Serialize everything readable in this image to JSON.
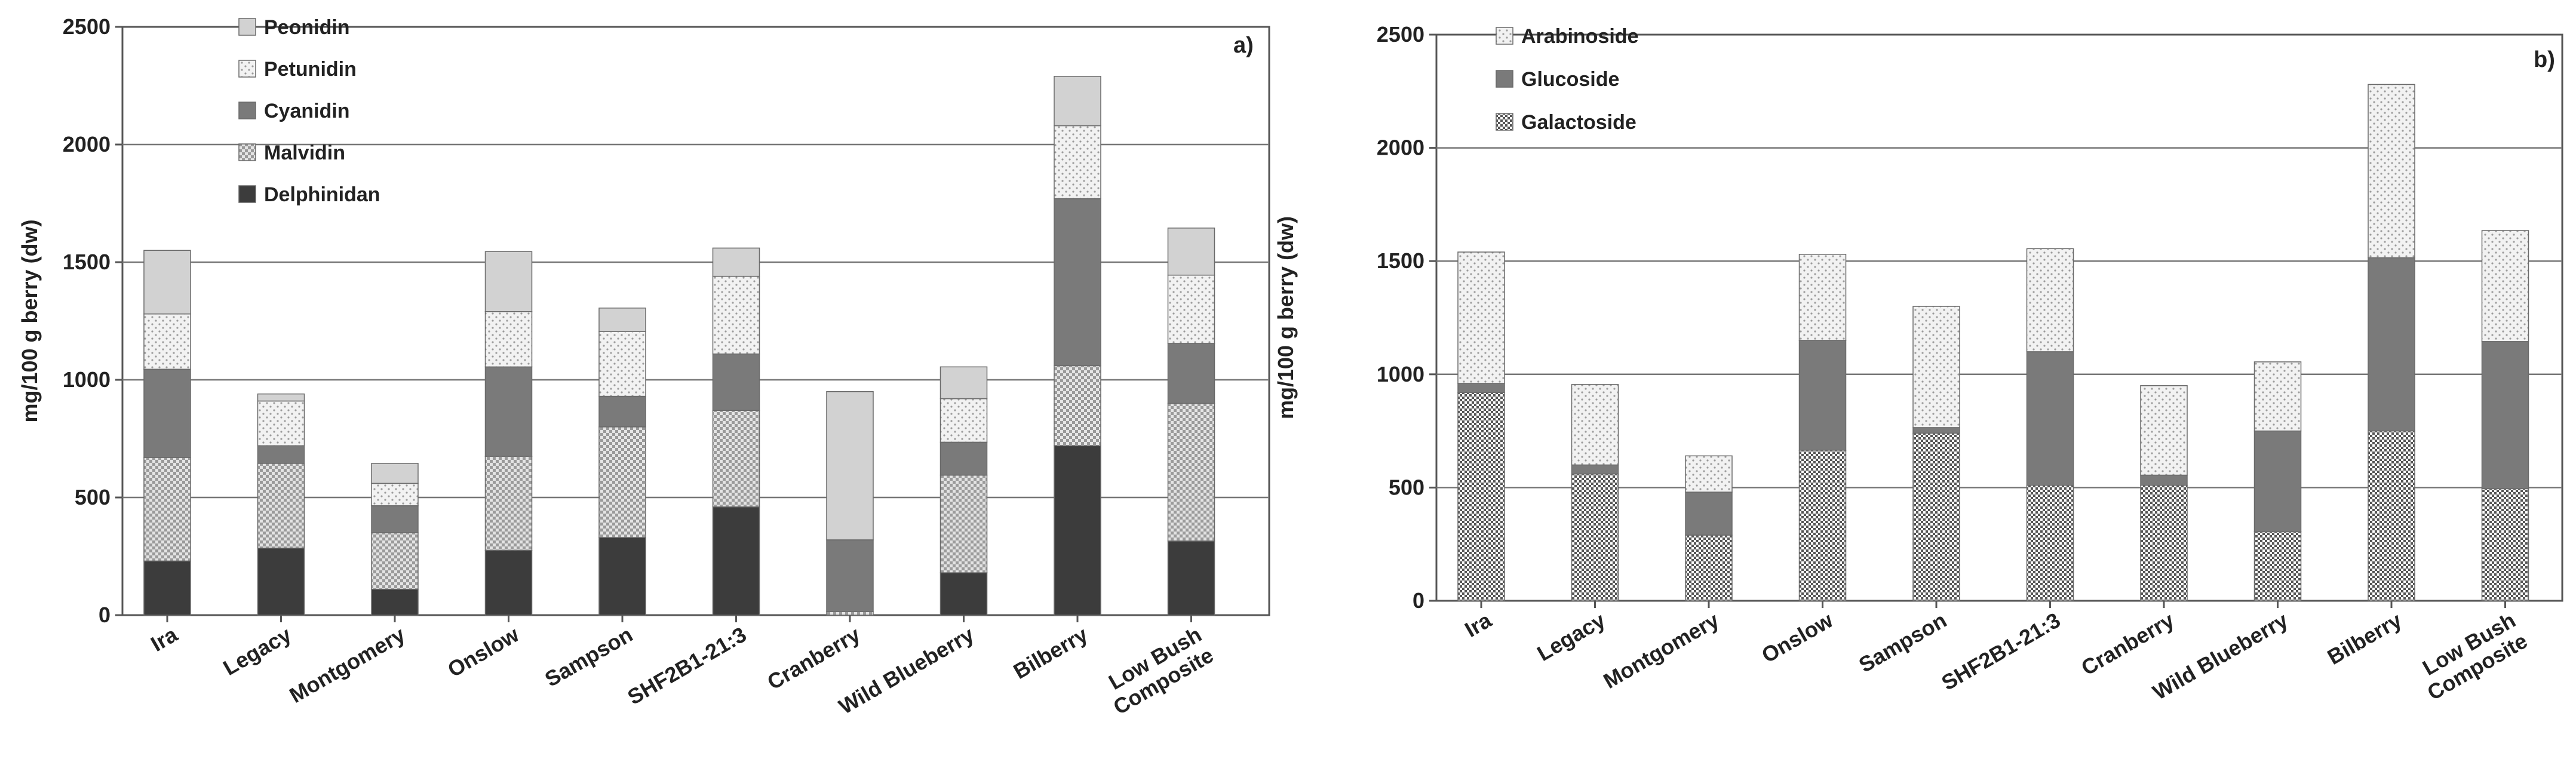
{
  "chart_data": [
    {
      "type": "bar",
      "stacked": true,
      "panel_label": "a)",
      "ylabel": "mg/100 g berry (dw)",
      "xlabel": "",
      "ylim": [
        0,
        2500
      ],
      "yticks": [
        0,
        500,
        1000,
        1500,
        2000,
        2500
      ],
      "grid": true,
      "legend_position": "top-left",
      "categories": [
        [
          "Ira"
        ],
        [
          "Legacy"
        ],
        [
          "Montgomery"
        ],
        [
          "Onslow"
        ],
        [
          "Sampson"
        ],
        [
          "SHF2B1-21:3"
        ],
        [
          "Cranberry"
        ],
        [
          "Wild Blueberry"
        ],
        [
          "Bilberry"
        ],
        [
          "Low Bush",
          "Composite"
        ]
      ],
      "series": [
        {
          "name": "Delphinidan",
          "pattern": "solid-dark",
          "values": [
            230,
            285,
            110,
            275,
            330,
            460,
            0,
            180,
            720,
            315
          ]
        },
        {
          "name": "Malvidin",
          "pattern": "checker",
          "values": [
            440,
            360,
            240,
            400,
            470,
            410,
            15,
            415,
            340,
            585
          ]
        },
        {
          "name": "Cyanidin",
          "pattern": "solid-mid",
          "values": [
            375,
            75,
            115,
            380,
            130,
            240,
            305,
            140,
            710,
            255
          ]
        },
        {
          "name": "Petunidin",
          "pattern": "dots",
          "values": [
            235,
            190,
            95,
            235,
            275,
            330,
            0,
            185,
            310,
            290
          ]
        },
        {
          "name": "Peonidin",
          "pattern": "solid-light",
          "values": [
            270,
            30,
            85,
            255,
            100,
            120,
            630,
            135,
            210,
            200
          ]
        }
      ]
    },
    {
      "type": "bar",
      "stacked": true,
      "panel_label": "b)",
      "ylabel": "mg/100 g berry (dw)",
      "xlabel": "",
      "ylim": [
        0,
        2500
      ],
      "yticks": [
        0,
        500,
        1000,
        1500,
        2000,
        2500
      ],
      "grid": true,
      "legend_position": "top-left",
      "categories": [
        [
          "Ira"
        ],
        [
          "Legacy"
        ],
        [
          "Montgomery"
        ],
        [
          "Onslow"
        ],
        [
          "Sampson"
        ],
        [
          "SHF2B1-21:3"
        ],
        [
          "Cranberry"
        ],
        [
          "Wild Blueberry"
        ],
        [
          "Bilberry"
        ],
        [
          "Low Bush",
          "Composite"
        ]
      ],
      "series": [
        {
          "name": "Galactoside",
          "pattern": "fine-check",
          "values": [
            920,
            560,
            290,
            665,
            740,
            510,
            510,
            305,
            750,
            495
          ]
        },
        {
          "name": "Glucoside",
          "pattern": "solid-mid",
          "values": [
            40,
            40,
            190,
            485,
            25,
            590,
            45,
            445,
            765,
            650
          ]
        },
        {
          "name": "Arabinoside",
          "pattern": "dots",
          "values": [
            580,
            355,
            160,
            380,
            535,
            455,
            395,
            305,
            765,
            490
          ]
        }
      ]
    }
  ]
}
